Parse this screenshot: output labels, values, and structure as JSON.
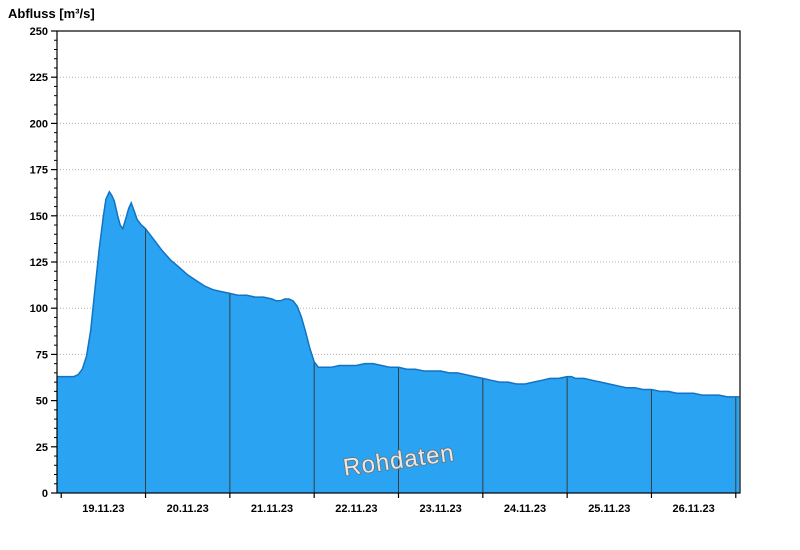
{
  "chart_data": {
    "type": "area",
    "title": "Abfluss [m³/s]",
    "watermark": "Rohdaten",
    "xlabel": "",
    "ylabel": "Abfluss [m³/s]",
    "x_unit": "days since 19.11.2023 00:00",
    "xlim": [
      -0.05,
      8.05
    ],
    "ylim": [
      0,
      250
    ],
    "y_tick_step": 25,
    "y_minor_step": 5,
    "y_tick_labels": [
      "0",
      "25",
      "50",
      "75",
      "100",
      "125",
      "150",
      "175",
      "200",
      "225",
      "250"
    ],
    "grid": "horizontal-dotted",
    "legend": "none",
    "x_axis_ticks": [
      0,
      1,
      2,
      3,
      4,
      5,
      6,
      7,
      8
    ],
    "day_boundary_lines": [
      1,
      2,
      3,
      4,
      5,
      6,
      7,
      8
    ],
    "x_labels": [
      {
        "t": 0.5,
        "label": "19.11.23"
      },
      {
        "t": 1.5,
        "label": "20.11.23"
      },
      {
        "t": 2.5,
        "label": "21.11.23"
      },
      {
        "t": 3.5,
        "label": "22.11.23"
      },
      {
        "t": 4.5,
        "label": "23.11.23"
      },
      {
        "t": 5.5,
        "label": "24.11.23"
      },
      {
        "t": 6.5,
        "label": "25.11.23"
      },
      {
        "t": 7.5,
        "label": "26.11.23"
      }
    ],
    "points": [
      [
        -0.05,
        63
      ],
      [
        0.05,
        63
      ],
      [
        0.15,
        63
      ],
      [
        0.2,
        64
      ],
      [
        0.25,
        67
      ],
      [
        0.3,
        74
      ],
      [
        0.35,
        88
      ],
      [
        0.4,
        110
      ],
      [
        0.45,
        132
      ],
      [
        0.5,
        150
      ],
      [
        0.53,
        159
      ],
      [
        0.57,
        163
      ],
      [
        0.6,
        161
      ],
      [
        0.63,
        158
      ],
      [
        0.67,
        150
      ],
      [
        0.7,
        145
      ],
      [
        0.73,
        143
      ],
      [
        0.77,
        149
      ],
      [
        0.8,
        154
      ],
      [
        0.83,
        157
      ],
      [
        0.87,
        152
      ],
      [
        0.9,
        148
      ],
      [
        0.95,
        145
      ],
      [
        1.0,
        143
      ],
      [
        1.05,
        140
      ],
      [
        1.1,
        137
      ],
      [
        1.2,
        131
      ],
      [
        1.3,
        126
      ],
      [
        1.4,
        122
      ],
      [
        1.5,
        118
      ],
      [
        1.6,
        115
      ],
      [
        1.7,
        112
      ],
      [
        1.8,
        110
      ],
      [
        1.9,
        109
      ],
      [
        2.0,
        108
      ],
      [
        2.1,
        107
      ],
      [
        2.2,
        107
      ],
      [
        2.3,
        106
      ],
      [
        2.4,
        106
      ],
      [
        2.5,
        105
      ],
      [
        2.55,
        104
      ],
      [
        2.6,
        104
      ],
      [
        2.65,
        105
      ],
      [
        2.7,
        105
      ],
      [
        2.75,
        104
      ],
      [
        2.8,
        101
      ],
      [
        2.85,
        95
      ],
      [
        2.9,
        87
      ],
      [
        2.95,
        78
      ],
      [
        3.0,
        71
      ],
      [
        3.05,
        68
      ],
      [
        3.1,
        68
      ],
      [
        3.2,
        68
      ],
      [
        3.3,
        69
      ],
      [
        3.4,
        69
      ],
      [
        3.5,
        69
      ],
      [
        3.6,
        70
      ],
      [
        3.7,
        70
      ],
      [
        3.8,
        69
      ],
      [
        3.9,
        68
      ],
      [
        4.0,
        68
      ],
      [
        4.1,
        67
      ],
      [
        4.2,
        67
      ],
      [
        4.3,
        66
      ],
      [
        4.4,
        66
      ],
      [
        4.5,
        66
      ],
      [
        4.6,
        65
      ],
      [
        4.7,
        65
      ],
      [
        4.8,
        64
      ],
      [
        4.9,
        63
      ],
      [
        5.0,
        62
      ],
      [
        5.1,
        61
      ],
      [
        5.2,
        60
      ],
      [
        5.3,
        60
      ],
      [
        5.4,
        59
      ],
      [
        5.5,
        59
      ],
      [
        5.6,
        60
      ],
      [
        5.7,
        61
      ],
      [
        5.8,
        62
      ],
      [
        5.9,
        62
      ],
      [
        6.0,
        63
      ],
      [
        6.05,
        63
      ],
      [
        6.1,
        62
      ],
      [
        6.2,
        62
      ],
      [
        6.3,
        61
      ],
      [
        6.4,
        60
      ],
      [
        6.5,
        59
      ],
      [
        6.6,
        58
      ],
      [
        6.7,
        57
      ],
      [
        6.8,
        57
      ],
      [
        6.9,
        56
      ],
      [
        7.0,
        56
      ],
      [
        7.1,
        55
      ],
      [
        7.2,
        55
      ],
      [
        7.3,
        54
      ],
      [
        7.4,
        54
      ],
      [
        7.5,
        54
      ],
      [
        7.6,
        53
      ],
      [
        7.7,
        53
      ],
      [
        7.8,
        53
      ],
      [
        7.9,
        52
      ],
      [
        8.04,
        52
      ]
    ],
    "colors": {
      "fill": "#29a3f2",
      "line": "#1273c4",
      "grid": "#b4b4b4",
      "day_line": "#3c3c3c",
      "axis": "#000000",
      "tick_label": "#000000",
      "watermark_fill": "#e8e8e8",
      "watermark_stroke": "#6e6e6e",
      "background": "#ffffff"
    }
  }
}
